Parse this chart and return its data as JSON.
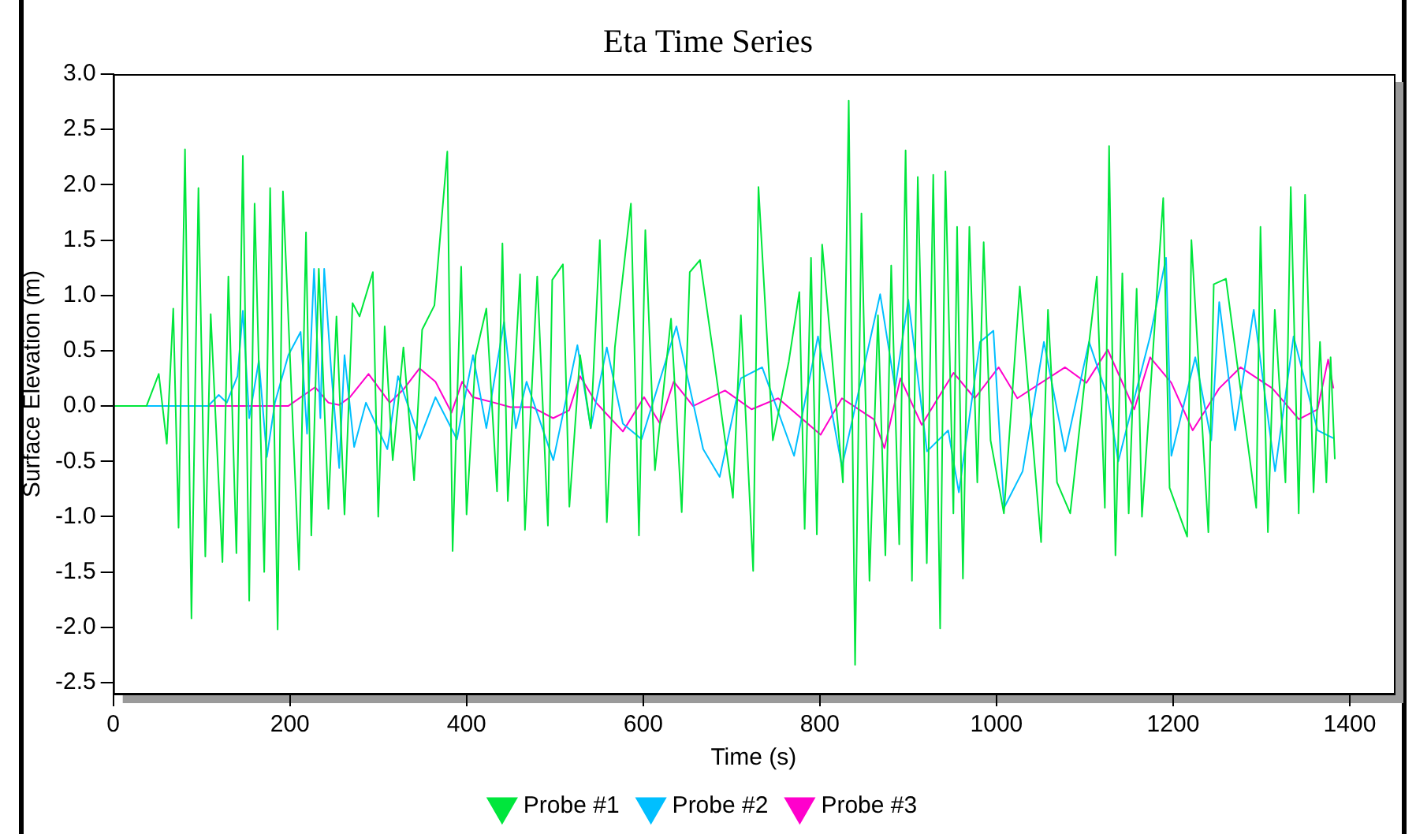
{
  "chart_data": {
    "type": "line",
    "title": "Eta Time Series",
    "xlabel": "Time (s)",
    "ylabel": "Surface Elevation (m)",
    "xlim": [
      0,
      1450
    ],
    "xticks": [
      0,
      200,
      400,
      600,
      800,
      1000,
      1200,
      1400
    ],
    "ylim": [
      -2.6,
      3
    ],
    "yticks": [
      -2.5,
      {
        "value": -2,
        "label": "-2.0"
      },
      -1.5,
      {
        "value": -1,
        "label": "-1.0"
      },
      -0.5,
      {
        "value": 0,
        "label": "0.0"
      },
      0.5,
      {
        "value": 1,
        "label": "1.0"
      },
      1.5,
      {
        "value": 2,
        "label": "2.0"
      },
      2.5,
      {
        "value": 3,
        "label": "3.0"
      }
    ],
    "grid": false,
    "legend": "bottom",
    "line_style": "solid",
    "series": [
      {
        "name": "Probe #1",
        "color": "#00e63c",
        "x": [
          0,
          37.6,
          51.5,
          60.6,
          67.9,
          73.9,
          81.2,
          88.5,
          96.4,
          104.2,
          110.3,
          123.6,
          130.3,
          139.4,
          146.7,
          153.9,
          160,
          170.9,
          177.6,
          186.1,
          192.1,
          210.3,
          218.2,
          224.2,
          232.7,
          243.6,
          252.7,
          261.8,
          270.9,
          278.8,
          293.9,
          300,
          307.3,
          316.4,
          328.5,
          340.6,
          349.7,
          363.6,
          378.2,
          384.2,
          393.9,
          400,
          410.3,
          422.4,
          434.5,
          440.6,
          446.7,
          460.6,
          466.1,
          480,
          492.1,
          497,
          509.1,
          516.4,
          528.5,
          540.6,
          550.9,
          558.8,
          567.9,
          586.1,
          595.2,
          602.4,
          613.3,
          631.5,
          643.6,
          652.7,
          664.3,
          680.6,
          701.6,
          710.6,
          724.5,
          730.5,
          746.8,
          764.8,
          776.8,
          782.8,
          790,
          796.6,
          802.6,
          826.1,
          832.7,
          839.9,
          847.1,
          856.2,
          865.8,
          874.2,
          880.8,
          889.9,
          897.1,
          904.3,
          910.9,
          921.1,
          928.4,
          936.2,
          942.2,
          951.2,
          955.4,
          962,
          969.3,
          978.3,
          985.5,
          993.3,
          1008.4,
          1026.4,
          1050.5,
          1058.3,
          1068.5,
          1083.5,
          1101.6,
          1113.6,
          1122.7,
          1127.5,
          1134.7,
          1142.5,
          1149.7,
          1158.7,
          1164.7,
          1188.8,
          1196,
          1215.9,
          1220.7,
          1239.9,
          1246,
          1259.8,
          1294.1,
          1298.9,
          1307.3,
          1315.1,
          1327.2,
          1333.2,
          1342.2,
          1349.4,
          1359,
          1366.3,
          1373.5,
          1378.3,
          1383.1
        ],
        "values": [
          0,
          0,
          0.29,
          -0.34,
          0.88,
          -1.1,
          2.32,
          -1.92,
          1.97,
          -1.36,
          0.83,
          -1.41,
          1.17,
          -1.33,
          2.26,
          -1.76,
          1.83,
          -1.5,
          1.97,
          -2.02,
          1.94,
          -1.48,
          1.57,
          -1.17,
          1.24,
          -0.93,
          0.81,
          -0.98,
          0.93,
          0.81,
          1.21,
          -1.0,
          0.72,
          -0.49,
          0.53,
          -0.67,
          0.69,
          0.91,
          2.3,
          -1.31,
          1.26,
          -0.98,
          0.46,
          0.88,
          -0.77,
          1.47,
          -0.86,
          1.19,
          -1.12,
          1.17,
          -1.08,
          1.14,
          1.28,
          -0.91,
          0.46,
          -0.2,
          1.5,
          -1.05,
          0.53,
          1.83,
          -1.17,
          1.59,
          -0.58,
          0.79,
          -0.96,
          1.21,
          1.32,
          0.4,
          -0.83,
          0.82,
          -1.49,
          1.98,
          -0.31,
          0.4,
          1.03,
          -1.11,
          1.34,
          -1.16,
          1.46,
          -0.69,
          2.76,
          -2.34,
          1.74,
          -1.58,
          0.82,
          -1.35,
          1.27,
          -1.25,
          2.31,
          -1.58,
          2.07,
          -1.42,
          2.09,
          -2.01,
          2.12,
          -0.97,
          1.62,
          -1.56,
          1.62,
          -0.69,
          1.48,
          -0.31,
          -0.97,
          1.08,
          -1.23,
          0.87,
          -0.69,
          -0.97,
          0.35,
          1.17,
          -0.92,
          2.35,
          -1.35,
          1.2,
          -0.97,
          1.06,
          -1.0,
          1.88,
          -0.74,
          -1.18,
          1.5,
          -1.14,
          1.1,
          1.15,
          -0.92,
          1.62,
          -1.14,
          0.87,
          -0.69,
          1.98,
          -0.97,
          1.91,
          -0.78,
          0.58,
          -0.69,
          0.44,
          -0.48
        ]
      },
      {
        "name": "Probe #2",
        "color": "#00bfff",
        "x": [
          0,
          107.3,
          119.4,
          128.5,
          140.6,
          146.7,
          153.9,
          164.8,
          173.9,
          183,
          198.2,
          212.1,
          219.4,
          227.3,
          234.5,
          238.8,
          246.7,
          255.8,
          261.8,
          272.7,
          286.1,
          310.3,
          322.4,
          346.7,
          364.8,
          389.1,
          407.3,
          422.4,
          442.4,
          455.8,
          467.9,
          498.2,
          525.5,
          540.6,
          558.8,
          577,
          598.2,
          637.6,
          667.9,
          686.6,
          710.6,
          734.7,
          770.8,
          797.9,
          825,
          868.3,
          885.2,
          900.2,
          921.3,
          945.3,
          957.4,
          981.4,
          996.5,
          1008.5,
          1029.6,
          1053.7,
          1077.7,
          1104.8,
          1125.9,
          1137.9,
          1174,
          1192,
          1198,
          1225.1,
          1243.2,
          1252.2,
          1270.2,
          1291.3,
          1315.4,
          1336.4,
          1363.5,
          1381.5
        ],
        "values": [
          0,
          0,
          0.1,
          0.03,
          0.27,
          0.86,
          -0.11,
          0.41,
          -0.46,
          0.03,
          0.46,
          0.67,
          -0.25,
          1.24,
          -0.11,
          1.24,
          0.32,
          -0.56,
          0.46,
          -0.37,
          0.03,
          -0.39,
          0.27,
          -0.3,
          0.08,
          -0.3,
          0.46,
          -0.2,
          0.76,
          -0.2,
          0.22,
          -0.49,
          0.55,
          -0.2,
          0.53,
          -0.16,
          -0.3,
          0.72,
          -0.39,
          -0.64,
          0.25,
          0.35,
          -0.45,
          0.63,
          -0.55,
          1.01,
          0.16,
          0.96,
          -0.41,
          -0.22,
          -0.78,
          0.58,
          0.68,
          -0.92,
          -0.59,
          0.58,
          -0.41,
          0.58,
          0.08,
          -0.5,
          0.63,
          1.34,
          -0.45,
          0.44,
          -0.31,
          0.94,
          -0.22,
          0.87,
          -0.59,
          0.63,
          -0.22,
          -0.29
        ]
      },
      {
        "name": "Probe #3",
        "color": "#ff00cc",
        "x": [
          0,
          198,
          228.5,
          243.6,
          255.8,
          267.9,
          289,
          313,
          328.5,
          346.7,
          364.8,
          383,
          395,
          407,
          431.5,
          449.7,
          474,
          498,
          516,
          528.5,
          546.7,
          577,
          601,
          619,
          634.5,
          656.5,
          692.6,
          722.7,
          752.8,
          800.9,
          825,
          861.1,
          873.1,
          891.2,
          915.3,
          951.4,
          975.4,
          1002.5,
          1023.6,
          1077.7,
          1101.8,
          1125.9,
          1156,
          1174,
          1198,
          1222.1,
          1252.2,
          1276.3,
          1312.4,
          1342.4,
          1363.5,
          1375.5,
          1381.5
        ],
        "values": [
          0,
          0,
          0.17,
          0.03,
          0.01,
          0.08,
          0.29,
          0.03,
          0.15,
          0.34,
          0.22,
          -0.06,
          0.22,
          0.08,
          0.03,
          -0.01,
          -0.01,
          -0.11,
          -0.04,
          0.27,
          0.03,
          -0.23,
          0.08,
          -0.16,
          0.22,
          0,
          0.14,
          -0.03,
          0.07,
          -0.26,
          0.07,
          -0.12,
          -0.38,
          0.25,
          -0.17,
          0.3,
          0.07,
          0.35,
          0.07,
          0.35,
          0.21,
          0.51,
          -0.03,
          0.44,
          0.21,
          -0.22,
          0.16,
          0.35,
          0.16,
          -0.12,
          -0.03,
          0.42,
          0.16
        ]
      }
    ]
  }
}
